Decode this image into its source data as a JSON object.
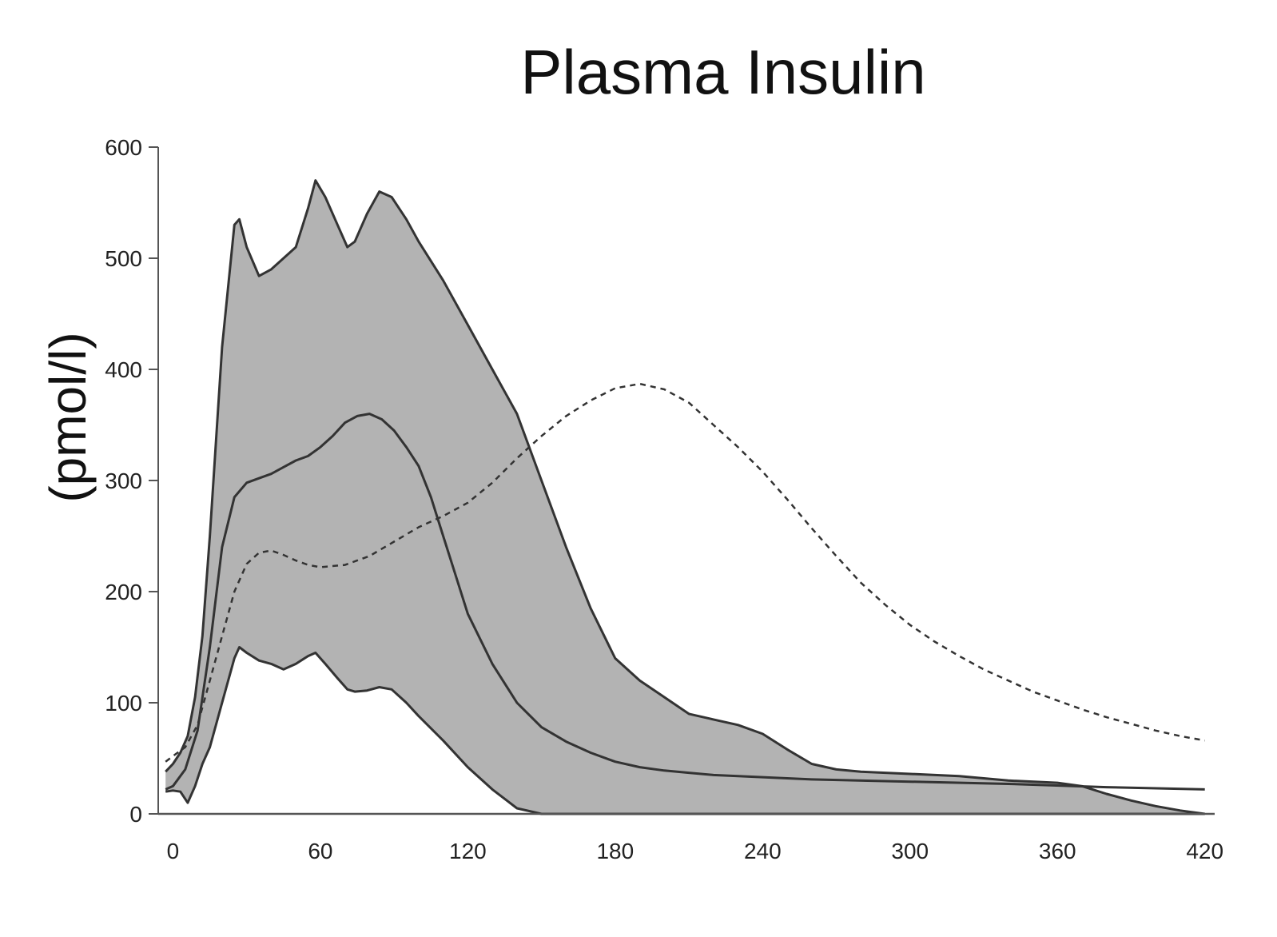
{
  "chart_data": {
    "type": "area",
    "title": "Plasma Insulin",
    "xlabel": "",
    "ylabel": "(pmol/l)",
    "xlim": [
      -6,
      424
    ],
    "ylim": [
      0,
      600
    ],
    "xticks": [
      0,
      60,
      120,
      180,
      240,
      300,
      360,
      420
    ],
    "yticks": [
      0,
      100,
      200,
      300,
      400,
      500,
      600
    ],
    "grid": false,
    "colors": {
      "band": "#b3b3b3",
      "line": "#333333",
      "axis": "#555555"
    },
    "series": [
      {
        "role": "band-upper",
        "style": "solid",
        "x": [
          -3,
          0,
          3,
          6,
          9,
          12,
          15,
          20,
          25,
          27,
          30,
          35,
          40,
          45,
          50,
          55,
          58,
          62,
          67,
          71,
          74,
          79,
          84,
          89,
          95,
          100,
          110,
          120,
          130,
          140,
          150,
          160,
          170,
          180,
          190,
          200,
          210,
          220,
          230,
          240,
          250,
          260,
          270,
          280,
          290,
          300,
          320,
          340,
          360,
          370,
          380,
          390,
          400,
          410,
          420
        ],
        "y": [
          38,
          45,
          55,
          70,
          105,
          160,
          250,
          420,
          530,
          535,
          510,
          484,
          490,
          500,
          510,
          545,
          570,
          555,
          530,
          510,
          515,
          540,
          560,
          555,
          535,
          515,
          480,
          440,
          400,
          360,
          300,
          240,
          185,
          140,
          120,
          105,
          90,
          85,
          80,
          72,
          58,
          45,
          40,
          38,
          37,
          36,
          34,
          30,
          28,
          25,
          18,
          12,
          7,
          3,
          0
        ]
      },
      {
        "role": "band-lower",
        "style": "solid",
        "x": [
          -3,
          0,
          3,
          6,
          9,
          12,
          15,
          20,
          25,
          27,
          30,
          35,
          40,
          45,
          50,
          55,
          58,
          62,
          67,
          71,
          74,
          79,
          84,
          89,
          95,
          100,
          110,
          120,
          130,
          140,
          150,
          160,
          170,
          180,
          190,
          200,
          210,
          220,
          230,
          240,
          250,
          260,
          270,
          280,
          290,
          300,
          320,
          340,
          360,
          370,
          380,
          390,
          400,
          410,
          420
        ],
        "y": [
          20,
          21,
          20,
          10,
          25,
          45,
          60,
          100,
          140,
          150,
          145,
          138,
          135,
          130,
          135,
          142,
          145,
          135,
          122,
          112,
          110,
          111,
          114,
          112,
          100,
          88,
          66,
          42,
          22,
          5,
          0,
          0,
          0,
          0,
          0,
          0,
          0,
          0,
          0,
          0,
          0,
          0,
          0,
          0,
          0,
          0,
          0,
          0,
          0,
          0,
          0,
          0,
          0,
          0,
          0
        ]
      },
      {
        "role": "mean",
        "style": "solid",
        "x": [
          -3,
          0,
          5,
          10,
          15,
          20,
          25,
          30,
          35,
          40,
          45,
          50,
          55,
          60,
          65,
          70,
          75,
          80,
          85,
          90,
          95,
          100,
          105,
          110,
          115,
          120,
          130,
          140,
          150,
          160,
          170,
          180,
          190,
          200,
          210,
          220,
          240,
          260,
          300,
          340,
          380,
          420
        ],
        "y": [
          22,
          25,
          40,
          75,
          150,
          240,
          285,
          298,
          302,
          306,
          312,
          318,
          322,
          330,
          340,
          352,
          358,
          360,
          355,
          345,
          330,
          313,
          285,
          250,
          215,
          180,
          135,
          100,
          78,
          65,
          55,
          47,
          42,
          39,
          37,
          35,
          33,
          31,
          29,
          27,
          24,
          22
        ]
      },
      {
        "role": "comparison",
        "style": "dashed",
        "x": [
          -3,
          0,
          5,
          10,
          15,
          20,
          25,
          30,
          35,
          40,
          45,
          50,
          55,
          60,
          70,
          80,
          90,
          100,
          110,
          120,
          130,
          140,
          150,
          160,
          170,
          180,
          190,
          200,
          210,
          220,
          230,
          240,
          250,
          260,
          270,
          280,
          290,
          300,
          310,
          320,
          330,
          340,
          350,
          360,
          370,
          380,
          390,
          400,
          410,
          420
        ],
        "y": [
          47,
          52,
          60,
          80,
          120,
          160,
          200,
          225,
          235,
          237,
          233,
          228,
          224,
          222,
          224,
          232,
          245,
          258,
          268,
          280,
          298,
          320,
          340,
          358,
          372,
          383,
          387,
          382,
          370,
          350,
          330,
          308,
          283,
          257,
          232,
          208,
          188,
          170,
          155,
          142,
          130,
          120,
          110,
          102,
          94,
          87,
          81,
          75,
          70,
          66
        ]
      }
    ]
  }
}
